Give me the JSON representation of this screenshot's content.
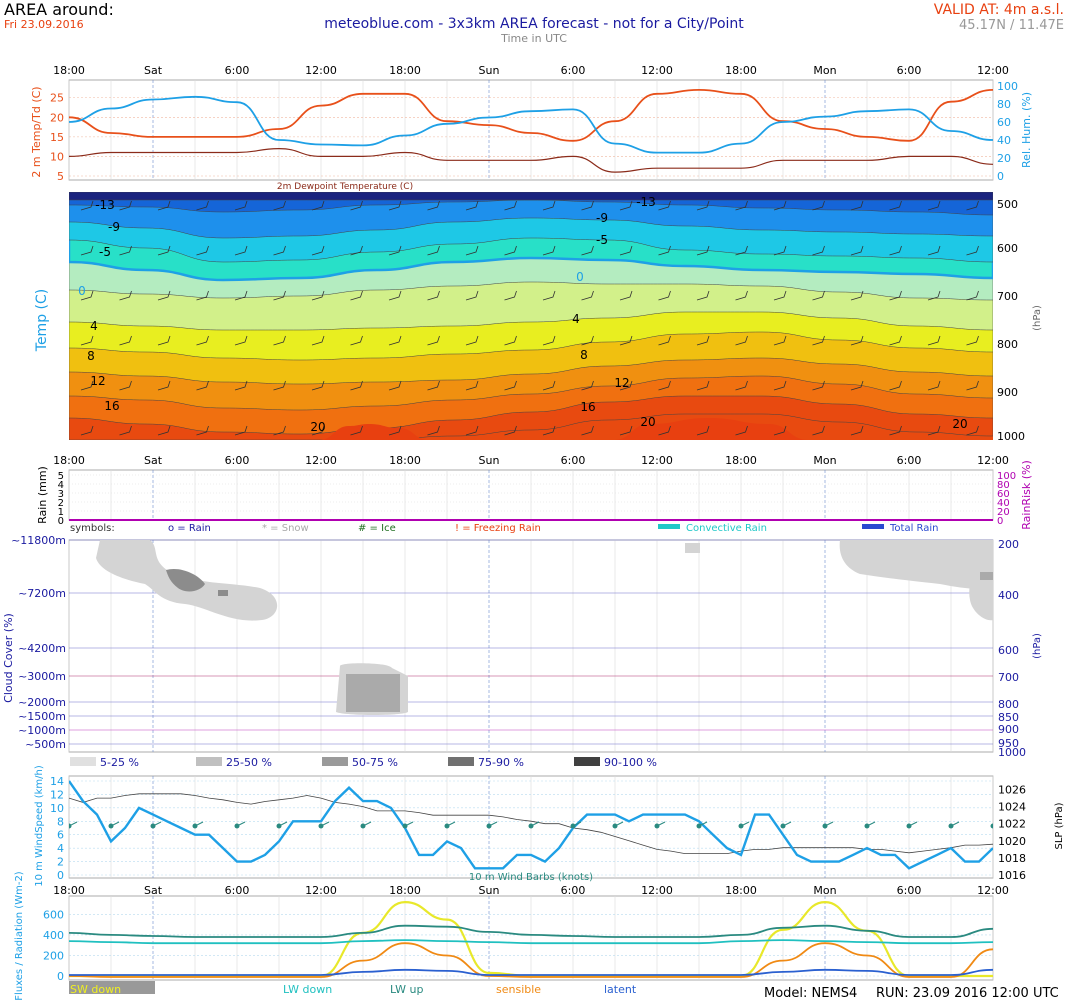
{
  "header": {
    "title": "AREA around:",
    "date": "Fri 23.09.2016",
    "center_title": "meteoblue.com - 3x3km AREA forecast - not for a City/Point",
    "subtitle": "Time in UTC",
    "valid_at": "VALID AT: 4m a.s.l.",
    "coords": "45.17N / 11.47E"
  },
  "time_axis": {
    "labels": [
      "18:00",
      "Sat",
      "6:00",
      "12:00",
      "18:00",
      "Sun",
      "6:00",
      "12:00",
      "18:00",
      "Mon",
      "6:00",
      "12:00"
    ]
  },
  "colors": {
    "temp": "#e8501a",
    "humidity": "#1ea0e6",
    "dewpoint": "#8b2b1a",
    "wind": "#1ea0e6",
    "pressure": "#444444",
    "sw_down": "#e8e82a",
    "lw_down": "#20c0c0",
    "lw_up": "#2a8a80",
    "sensible": "#f08a14",
    "latent": "#2a60d0",
    "rain_axis": "#b000b0"
  },
  "footer": {
    "model": "Model: NEMS4",
    "run": "RUN: 23.09 2016 12:00 UTC"
  },
  "chart_data": [
    {
      "type": "line",
      "id": "temperature_humidity",
      "ylabel": "2 m Temp/Td (C)",
      "y2label": "Rel. Hum. (%)",
      "annotation": "2m Dewpoint Temperature (C)",
      "ylim": [
        5,
        28
      ],
      "y_ticks": [
        5,
        10,
        15,
        20,
        25
      ],
      "y2lim": [
        0,
        100
      ],
      "y2_ticks": [
        0,
        20,
        40,
        60,
        80,
        100
      ],
      "x_hours": [
        0,
        3,
        6,
        9,
        12,
        15,
        18,
        21,
        24,
        27,
        30,
        33,
        36,
        39,
        42,
        45,
        48,
        51,
        54,
        57,
        60,
        63,
        66
      ],
      "series": [
        {
          "name": "temp",
          "axis": "left",
          "values": [
            20,
            16,
            15,
            15,
            15,
            17,
            23,
            26,
            26,
            19,
            18,
            16,
            14,
            19,
            26,
            27,
            26,
            19,
            17,
            15,
            14,
            24,
            27
          ]
        },
        {
          "name": "humidity",
          "axis": "right",
          "values": [
            60,
            75,
            85,
            88,
            82,
            40,
            35,
            34,
            45,
            58,
            65,
            72,
            74,
            36,
            26,
            26,
            36,
            60,
            66,
            72,
            74,
            50,
            40
          ]
        },
        {
          "name": "dewpoint",
          "axis": "left",
          "values": [
            10,
            11,
            11,
            11,
            11,
            12,
            10,
            10,
            11,
            9,
            9,
            9,
            10,
            6,
            7,
            7,
            7,
            9,
            9,
            9,
            10,
            10,
            8
          ]
        }
      ]
    },
    {
      "type": "heatmap",
      "id": "temperature_profile",
      "ylabel": "Temp (C)",
      "y2label": "(hPa)",
      "y2_ticks": [
        500,
        600,
        700,
        800,
        900,
        1000
      ],
      "contour_labels": [
        "-13",
        "-9",
        "-5",
        "0",
        "4",
        "8",
        "12",
        "16",
        "20",
        "-9",
        "-5",
        "0",
        "4",
        "8",
        "12",
        "16",
        "20",
        "-13",
        "20"
      ]
    },
    {
      "type": "bar",
      "id": "precipitation",
      "ylabel": "Rain (mm)",
      "y_ticks": [
        0,
        1,
        2,
        3,
        4,
        5
      ],
      "y2label": "RainRisk (%)",
      "y2_ticks": [
        0,
        20,
        40,
        60,
        80,
        100
      ],
      "values": [],
      "legend": [
        {
          "label": "symbols:",
          "color": "#333333"
        },
        {
          "label": "o = Rain",
          "color": "#1a1aa0"
        },
        {
          "label": "* = Snow",
          "color": "#aaaaaa"
        },
        {
          "label": "# = Ice",
          "color": "#207020"
        },
        {
          "label": "! = Freezing Rain",
          "color": "#e84010"
        },
        {
          "label": "Convective Rain",
          "color": "#20c8c8"
        },
        {
          "label": "Total Rain",
          "color": "#2a4ad0"
        }
      ]
    },
    {
      "type": "heatmap",
      "id": "cloud_cover",
      "ylabel": "Cloud Cover (%)",
      "y_ticks": [
        "~11800m",
        "~7200m",
        "~4200m",
        "~3000m",
        "~2000m",
        "~1500m",
        "~1000m",
        "~500m"
      ],
      "y2label": "(hPa)",
      "y2_ticks": [
        "200",
        "400",
        "600",
        "700",
        "800",
        "850",
        "900",
        "950",
        "1000"
      ],
      "legend": [
        "5-25 %",
        "25-50 %",
        "50-75 %",
        "75-90 %",
        "90-100 %"
      ]
    },
    {
      "type": "line",
      "id": "wind_pressure",
      "ylabel": "10 m WindSpeed (km/h)",
      "y2label": "SLP (hPa)",
      "annotation": "10 m Wind Barbs (knots)",
      "ylim": [
        0,
        14
      ],
      "y_ticks": [
        0,
        2,
        4,
        6,
        8,
        10,
        12,
        14
      ],
      "y2lim": [
        1016,
        1027
      ],
      "y2_ticks": [
        1016,
        1018,
        1020,
        1022,
        1024,
        1026
      ],
      "x_hours": [
        0,
        1,
        2,
        3,
        4,
        5,
        6,
        7,
        8,
        9,
        10,
        11,
        12,
        13,
        14,
        15,
        16,
        17,
        18,
        19,
        20,
        21,
        22,
        23,
        24,
        25,
        26,
        27,
        28,
        29,
        30,
        31,
        32,
        33,
        34,
        35,
        36,
        37,
        38,
        39,
        40,
        41,
        42,
        43,
        44,
        45,
        46,
        47,
        48,
        49,
        50,
        51,
        52,
        53,
        54,
        55,
        56,
        57,
        58,
        59,
        60,
        61,
        62,
        63,
        64,
        65,
        66
      ],
      "series": [
        {
          "name": "windspeed",
          "axis": "left",
          "values": [
            14,
            11,
            9,
            5,
            7,
            10,
            9,
            8,
            7,
            6,
            6,
            4,
            2,
            2,
            3,
            5,
            8,
            8,
            8,
            11,
            13,
            11,
            11,
            10,
            7,
            3,
            3,
            5,
            4,
            1,
            1,
            1,
            3,
            3,
            2,
            4,
            7,
            9,
            9,
            9,
            8,
            9,
            9,
            9,
            9,
            8,
            6,
            4,
            3,
            9,
            9,
            6,
            3,
            2,
            2,
            2,
            3,
            4,
            3,
            3,
            1,
            2,
            3,
            4,
            2,
            2,
            4
          ]
        },
        {
          "name": "pressure",
          "axis": "right",
          "values": [
            1025,
            1024.5,
            1025,
            1025,
            1025.3,
            1025.5,
            1025.5,
            1025.5,
            1025.5,
            1025.3,
            1025,
            1024.8,
            1024.5,
            1024.3,
            1024.6,
            1024.8,
            1025,
            1025.3,
            1025,
            1024.5,
            1024.3,
            1024,
            1023.5,
            1023.5,
            1023.5,
            1023.3,
            1023,
            1023,
            1023,
            1023,
            1023,
            1022.8,
            1022.5,
            1022.3,
            1022,
            1022,
            1021.5,
            1021.3,
            1021,
            1020.5,
            1020,
            1019.5,
            1019,
            1018.8,
            1018.5,
            1018.5,
            1018.5,
            1018.5,
            1018.8,
            1019,
            1019,
            1019.2,
            1019.2,
            1019.2,
            1019.2,
            1019.2,
            1019.2,
            1019,
            1019,
            1018.8,
            1018.6,
            1018.8,
            1019,
            1019.2,
            1019.5,
            1019.5,
            1019.6
          ]
        }
      ]
    },
    {
      "type": "line",
      "id": "fluxes_radiation",
      "ylabel": "Fluxes / Radiation (Wm-2)",
      "ylim": [
        0,
        760
      ],
      "y_ticks": [
        0,
        200,
        400,
        600
      ],
      "x_hours": [
        0,
        3,
        6,
        9,
        12,
        15,
        18,
        21,
        24,
        27,
        30,
        33,
        36,
        39,
        42,
        45,
        48,
        51,
        54,
        57,
        60,
        63,
        66
      ],
      "series": [
        {
          "name": "SW down",
          "values": [
            0,
            0,
            0,
            0,
            0,
            0,
            0,
            420,
            720,
            550,
            30,
            0,
            0,
            0,
            0,
            0,
            0,
            450,
            720,
            440,
            0,
            0,
            0
          ]
        },
        {
          "name": "LW down",
          "values": [
            340,
            330,
            320,
            320,
            320,
            320,
            320,
            340,
            350,
            340,
            330,
            320,
            320,
            320,
            320,
            320,
            340,
            350,
            340,
            330,
            320,
            320,
            330
          ]
        },
        {
          "name": "LW up",
          "values": [
            420,
            400,
            390,
            380,
            380,
            380,
            380,
            420,
            490,
            480,
            430,
            400,
            390,
            380,
            380,
            380,
            400,
            470,
            490,
            440,
            380,
            380,
            460
          ]
        },
        {
          "name": "sensible",
          "values": [
            0,
            -10,
            -10,
            -10,
            -10,
            -10,
            -10,
            150,
            320,
            200,
            0,
            -10,
            -10,
            -10,
            -10,
            -10,
            -10,
            150,
            320,
            200,
            -10,
            -10,
            260
          ]
        },
        {
          "name": "latent",
          "values": [
            10,
            10,
            10,
            10,
            10,
            10,
            10,
            40,
            60,
            50,
            10,
            10,
            10,
            10,
            10,
            10,
            10,
            40,
            60,
            50,
            10,
            10,
            60
          ]
        }
      ],
      "legend": [
        "SW down",
        "LW down",
        "LW up",
        "sensible",
        "latent"
      ]
    }
  ]
}
